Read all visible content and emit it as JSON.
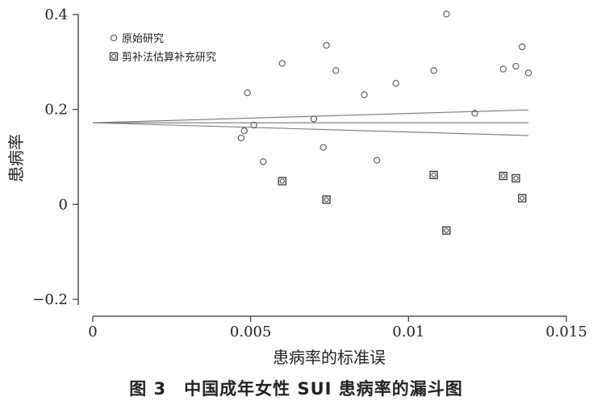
{
  "caption": "图 3　中国成年女性 SUI 患病率的漏斗图",
  "chart_data": {
    "type": "scatter",
    "xlabel": "患病率的标准误",
    "ylabel": "患病率",
    "xlim": [
      0,
      0.015
    ],
    "ylim": [
      -0.2,
      0.4
    ],
    "x_ticks": [
      0,
      0.005,
      0.01,
      0.015
    ],
    "x_tick_labels": [
      "0",
      "0.005",
      "0.01",
      "0.015"
    ],
    "y_ticks": [
      -0.2,
      0,
      0.2,
      0.4
    ],
    "y_tick_labels": [
      "−0.2",
      "0",
      "0.2",
      "0.4"
    ],
    "grid": false,
    "legend_position": "top-left",
    "series": [
      {
        "name": "原始研究",
        "marker": "circle",
        "color": "#555555",
        "points": [
          [
            0.0049,
            0.235
          ],
          [
            0.0047,
            0.14
          ],
          [
            0.0048,
            0.155
          ],
          [
            0.0051,
            0.167
          ],
          [
            0.0054,
            0.09
          ],
          [
            0.006,
            0.297
          ],
          [
            0.007,
            0.18
          ],
          [
            0.0073,
            0.12
          ],
          [
            0.0074,
            0.335
          ],
          [
            0.0077,
            0.282
          ],
          [
            0.0086,
            0.231
          ],
          [
            0.009,
            0.093
          ],
          [
            0.0096,
            0.255
          ],
          [
            0.0108,
            0.282
          ],
          [
            0.0112,
            0.401
          ],
          [
            0.0121,
            0.192
          ],
          [
            0.013,
            0.285
          ],
          [
            0.0134,
            0.291
          ],
          [
            0.0136,
            0.332
          ],
          [
            0.0138,
            0.277
          ]
        ]
      },
      {
        "name": "剪补法估算补充研究",
        "marker": "square-circle",
        "color": "#333333",
        "points": [
          [
            0.006,
            0.049
          ],
          [
            0.0074,
            0.01
          ],
          [
            0.0108,
            0.062
          ],
          [
            0.0112,
            -0.055
          ],
          [
            0.013,
            0.06
          ],
          [
            0.0134,
            0.055
          ],
          [
            0.0136,
            0.013
          ]
        ]
      }
    ],
    "lines": [
      {
        "name": "pooled",
        "x": [
          0,
          0.0138
        ],
        "y": [
          0.172,
          0.172
        ]
      },
      {
        "name": "upper",
        "x": [
          0,
          0.0138
        ],
        "y": [
          0.172,
          0.199
        ]
      },
      {
        "name": "lower",
        "x": [
          0,
          0.0138
        ],
        "y": [
          0.172,
          0.145
        ]
      }
    ]
  }
}
